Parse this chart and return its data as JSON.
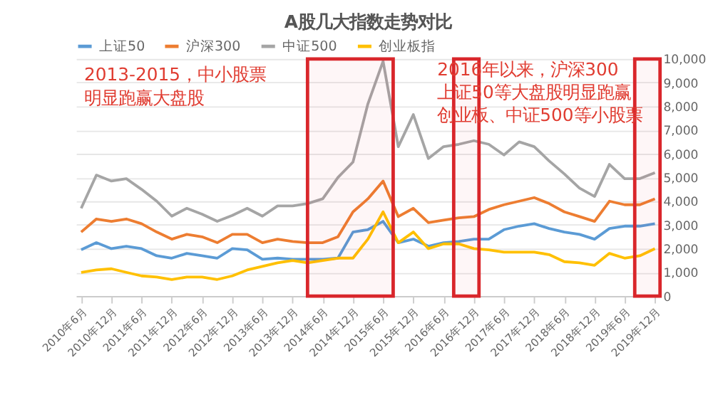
{
  "chart_data": {
    "type": "line",
    "title": "A股几大指数走势对比",
    "x": [
      "2010-06",
      "2010-09",
      "2010-12",
      "2011-03",
      "2011-06",
      "2011-09",
      "2011-12",
      "2012-03",
      "2012-06",
      "2012-09",
      "2012-12",
      "2013-03",
      "2013-06",
      "2013-09",
      "2013-12",
      "2014-03",
      "2014-06",
      "2014-09",
      "2014-12",
      "2015-03",
      "2015-06",
      "2015-09",
      "2015-12",
      "2016-03",
      "2016-06",
      "2016-09",
      "2016-12",
      "2017-03",
      "2017-06",
      "2017-09",
      "2017-12",
      "2018-03",
      "2018-06",
      "2018-09",
      "2018-12",
      "2019-03",
      "2019-06",
      "2019-09",
      "2019-12"
    ],
    "series": [
      {
        "name": "上证50",
        "color": "#5b9bd5",
        "values": [
          1950,
          2250,
          2000,
          2100,
          2000,
          1700,
          1600,
          1800,
          1700,
          1600,
          2000,
          1950,
          1550,
          1600,
          1550,
          1550,
          1550,
          1600,
          2700,
          2800,
          3150,
          2250,
          2400,
          2100,
          2250,
          2300,
          2400,
          2400,
          2800,
          2950,
          3050,
          2850,
          2700,
          2600,
          2400,
          2850,
          2950,
          2950,
          3050
        ]
      },
      {
        "name": "沪深300",
        "color": "#ed7d31",
        "values": [
          2700,
          3250,
          3150,
          3250,
          3050,
          2700,
          2400,
          2600,
          2500,
          2250,
          2600,
          2600,
          2250,
          2400,
          2300,
          2250,
          2250,
          2500,
          3550,
          4100,
          4850,
          3350,
          3700,
          3100,
          3200,
          3300,
          3350,
          3650,
          3850,
          4000,
          4150,
          3900,
          3550,
          3350,
          3150,
          4000,
          3850,
          3850,
          4100
        ]
      },
      {
        "name": "中证500",
        "color": "#a5a5a5",
        "values": [
          3700,
          5100,
          4850,
          4950,
          4500,
          4000,
          3370,
          3700,
          3450,
          3150,
          3400,
          3700,
          3370,
          3800,
          3800,
          3900,
          4100,
          5000,
          5650,
          8100,
          9900,
          6300,
          7650,
          5800,
          6300,
          6400,
          6550,
          6400,
          5950,
          6500,
          6300,
          5700,
          5150,
          4550,
          4200,
          5550,
          4950,
          4950,
          5200
        ]
      },
      {
        "name": "创业板指",
        "color": "#ffc000",
        "values": [
          1000,
          1100,
          1150,
          1000,
          850,
          800,
          700,
          800,
          800,
          700,
          850,
          1100,
          1250,
          1400,
          1500,
          1400,
          1500,
          1600,
          1600,
          2400,
          3550,
          2250,
          2700,
          2000,
          2200,
          2200,
          2000,
          1950,
          1850,
          1850,
          1850,
          1750,
          1450,
          1400,
          1300,
          1800,
          1600,
          1700,
          2000
        ]
      }
    ],
    "xlim": [
      "2010-05",
      "2020-01"
    ],
    "xticks": [
      {
        "value": "2010-06",
        "label": "2010年6月"
      },
      {
        "value": "2010-12",
        "label": "2010年12月"
      },
      {
        "value": "2011-06",
        "label": "2011年6月"
      },
      {
        "value": "2011-12",
        "label": "2011年12月"
      },
      {
        "value": "2012-06",
        "label": "2012年6月"
      },
      {
        "value": "2012-12",
        "label": "2012年12月"
      },
      {
        "value": "2013-06",
        "label": "2013年6月"
      },
      {
        "value": "2013-12",
        "label": "2013年12月"
      },
      {
        "value": "2014-06",
        "label": "2014年6月"
      },
      {
        "value": "2014-12",
        "label": "2014年12月"
      },
      {
        "value": "2015-06",
        "label": "2015年6月"
      },
      {
        "value": "2015-12",
        "label": "2015年12月"
      },
      {
        "value": "2016-06",
        "label": "2016年6月"
      },
      {
        "value": "2016-12",
        "label": "2016年12月"
      },
      {
        "value": "2017-06",
        "label": "2017年6月"
      },
      {
        "value": "2017-12",
        "label": "2017年12月"
      },
      {
        "value": "2018-06",
        "label": "2018年6月"
      },
      {
        "value": "2018-12",
        "label": "2018年12月"
      },
      {
        "value": "2019-06",
        "label": "2019年6月"
      },
      {
        "value": "2019-12",
        "label": "2019年12月"
      }
    ],
    "ylim": [
      0,
      10000
    ],
    "yticks": [
      {
        "value": 0,
        "label": "0"
      },
      {
        "value": 1000,
        "label": "1,000"
      },
      {
        "value": 2000,
        "label": "2,000"
      },
      {
        "value": 3000,
        "label": "3,000"
      },
      {
        "value": 4000,
        "label": "4,000"
      },
      {
        "value": 5000,
        "label": "5,000"
      },
      {
        "value": 6000,
        "label": "6,000"
      },
      {
        "value": 7000,
        "label": "7,000"
      },
      {
        "value": 8000,
        "label": "8,000"
      },
      {
        "value": 9000,
        "label": "9,000"
      },
      {
        "value": 10000,
        "label": "10,000"
      }
    ],
    "bands": [
      {
        "axis": "x",
        "from": "2014-03",
        "to": "2015-08",
        "color": "#d9262b"
      },
      {
        "axis": "x",
        "from": "2016-08",
        "to": "2017-01",
        "color": "#d9262b"
      },
      {
        "axis": "x",
        "from": "2019-08",
        "to": "2020-01",
        "color": "#d9262b"
      }
    ],
    "annotations": [
      "2013-2015，中小股票明显跑赢大盘股",
      "2016年以来，沪深300上证50等大盘股明显跑赢创业板、中证500等小股票"
    ],
    "grid": "y",
    "legend": "top",
    "marker": "none",
    "line_style": "solid"
  }
}
